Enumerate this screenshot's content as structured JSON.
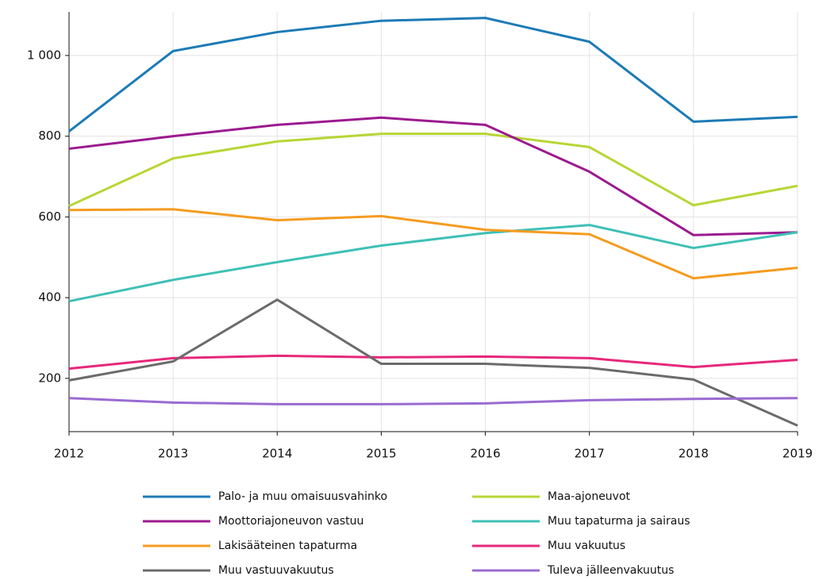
{
  "chart_data": {
    "type": "line",
    "x": [
      2012,
      2013,
      2014,
      2015,
      2016,
      2017,
      2018,
      2019
    ],
    "xlim": [
      2012,
      2019
    ],
    "xticks": [
      2012,
      2013,
      2014,
      2015,
      2016,
      2017,
      2018,
      2019
    ],
    "ylim": [
      68,
      1108
    ],
    "yticks": [
      200,
      400,
      600,
      800,
      {
        "value": 1000,
        "label": "1 000"
      }
    ],
    "grid": true,
    "series": [
      {
        "name": "Palo- ja muu omaisuusvahinko",
        "color": "#1c7bb6",
        "values": [
          812,
          1011,
          1058,
          1086,
          1093,
          1034,
          836,
          848
        ]
      },
      {
        "name": "Maa-ajoneuvot",
        "color": "#b7d636",
        "values": [
          627,
          745,
          787,
          806,
          806,
          773,
          629,
          677
        ]
      },
      {
        "name": "Moottoriajoneuvon vastuu",
        "color": "#9c1a8f",
        "values": [
          769,
          800,
          828,
          846,
          828,
          712,
          555,
          562
        ]
      },
      {
        "name": "Muu tapaturma ja sairaus",
        "color": "#3fc0b6",
        "values": [
          391,
          444,
          488,
          529,
          560,
          580,
          523,
          562
        ]
      },
      {
        "name": "Lakisääteinen tapaturma",
        "color": "#f59b1e",
        "values": [
          617,
          619,
          592,
          602,
          568,
          557,
          448,
          474
        ]
      },
      {
        "name": "Muu vakuutus",
        "color": "#e6287b",
        "values": [
          224,
          250,
          256,
          252,
          254,
          250,
          228,
          246
        ]
      },
      {
        "name": "Muu vastuuvakuutus",
        "color": "#6b6b6b",
        "values": [
          195,
          242,
          395,
          236,
          236,
          226,
          197,
          83
        ]
      },
      {
        "name": "Tuleva jälleenvakuutus",
        "color": "#9a6bd1",
        "values": [
          151,
          140,
          136,
          136,
          138,
          146,
          149,
          151
        ]
      }
    ]
  }
}
